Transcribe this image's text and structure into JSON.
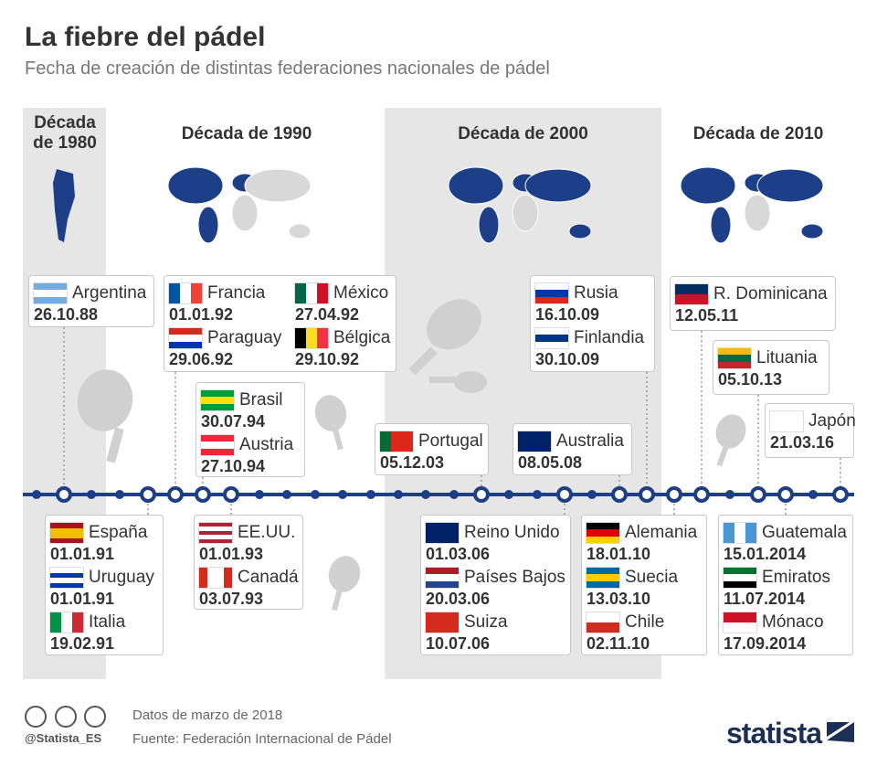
{
  "header": {
    "title": "La fiebre del pádel",
    "subtitle": "Fecha de creación de distintas federaciones nacionales de pádel"
  },
  "decades": [
    "Década de 1980",
    "Década de 1990",
    "Década de 2000",
    "Década de 2010"
  ],
  "cards": [
    {
      "items": [
        {
          "country": "Argentina",
          "date": "26.10.88"
        }
      ]
    },
    {
      "items": [
        {
          "country": "Francia",
          "date": "01.01.92"
        },
        {
          "country": "México",
          "date": "27.04.92"
        },
        {
          "country": "Paraguay",
          "date": "29.06.92"
        },
        {
          "country": "Bélgica",
          "date": "29.10.92"
        }
      ]
    },
    {
      "items": [
        {
          "country": "Brasil",
          "date": "30.07.94"
        },
        {
          "country": "Austria",
          "date": "27.10.94"
        }
      ]
    },
    {
      "items": [
        {
          "country": "Portugal",
          "date": "05.12.03"
        }
      ]
    },
    {
      "items": [
        {
          "country": "Rusia",
          "date": "16.10.09"
        },
        {
          "country": "Finlandia",
          "date": "30.10.09"
        }
      ]
    },
    {
      "items": [
        {
          "country": "Australia",
          "date": "08.05.08"
        }
      ]
    },
    {
      "items": [
        {
          "country": "R. Dominicana",
          "date": "12.05.11"
        }
      ]
    },
    {
      "items": [
        {
          "country": "Lituania",
          "date": "05.10.13"
        }
      ]
    },
    {
      "items": [
        {
          "country": "Japón",
          "date": "21.03.16"
        }
      ]
    },
    {
      "items": [
        {
          "country": "España",
          "date": "01.01.91"
        },
        {
          "country": "Uruguay",
          "date": "01.01.91"
        },
        {
          "country": "Italia",
          "date": "19.02.91"
        }
      ]
    },
    {
      "items": [
        {
          "country": "EE.UU.",
          "date": "01.01.93"
        },
        {
          "country": "Canadá",
          "date": "03.07.93"
        }
      ]
    },
    {
      "items": [
        {
          "country": "Reino Unido",
          "date": "01.03.06"
        },
        {
          "country": "Países Bajos",
          "date": "20.03.06"
        },
        {
          "country": "Suiza",
          "date": "10.07.06"
        }
      ]
    },
    {
      "items": [
        {
          "country": "Alemania",
          "date": "18.01.10"
        },
        {
          "country": "Suecia",
          "date": "13.03.10"
        },
        {
          "country": "Chile",
          "date": "02.11.10"
        }
      ]
    },
    {
      "items": [
        {
          "country": "Guatemala",
          "date": "15.01.2014"
        },
        {
          "country": "Emiratos",
          "date": "11.07.2014"
        },
        {
          "country": "Mónaco",
          "date": "17.09.2014"
        }
      ]
    }
  ],
  "footer": {
    "note": "Datos de marzo de 2018",
    "source": "Fuente: Federación Internacional de Pádel",
    "handle": "@Statista_ES",
    "brand": "statista"
  }
}
